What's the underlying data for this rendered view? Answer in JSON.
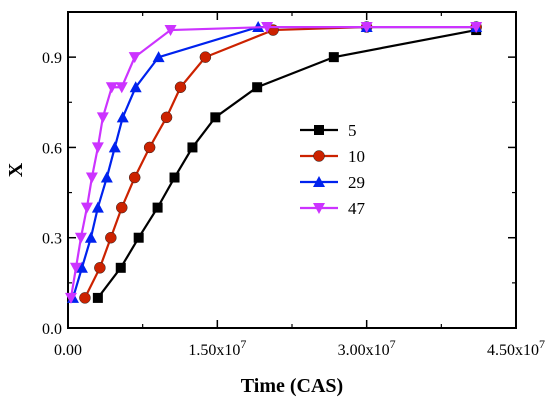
{
  "chart_data": {
    "type": "line",
    "title": "",
    "xlabel": "Time (CAS)",
    "ylabel": "X",
    "xlim": [
      0,
      45000000
    ],
    "ylim": [
      0,
      1.05
    ],
    "x_ticks": [
      {
        "value": 0,
        "label": "0.00"
      },
      {
        "value": 15000000,
        "label": "1.50x10^7"
      },
      {
        "value": 30000000,
        "label": "3.00x10^7"
      },
      {
        "value": 45000000,
        "label": "4.50x10^7"
      }
    ],
    "y_ticks": [
      {
        "value": 0.0,
        "label": "0.0"
      },
      {
        "value": 0.3,
        "label": "0.3"
      },
      {
        "value": 0.6,
        "label": "0.6"
      },
      {
        "value": 0.9,
        "label": "0.9"
      }
    ],
    "grid": false,
    "legend_position": "right-center",
    "series": [
      {
        "name": "5",
        "color": "#000000",
        "marker": "square",
        "x": [
          3000000,
          5300000,
          7100000,
          9000000,
          10700000,
          12500000,
          14800000,
          19000000,
          26700000,
          41000000
        ],
        "y": [
          0.1,
          0.2,
          0.3,
          0.4,
          0.5,
          0.6,
          0.7,
          0.8,
          0.9,
          0.99
        ]
      },
      {
        "name": "10",
        "color": "#cc2200",
        "marker": "circle",
        "x": [
          1700000,
          3200000,
          4300000,
          5400000,
          6700000,
          8200000,
          9900000,
          11300000,
          13800000,
          20600000,
          30000000,
          41000000
        ],
        "y": [
          0.1,
          0.2,
          0.3,
          0.4,
          0.5,
          0.6,
          0.7,
          0.8,
          0.9,
          0.99,
          1.0,
          1.0
        ]
      },
      {
        "name": "29",
        "color": "#0022ee",
        "marker": "triangle-up",
        "x": [
          500000,
          1400000,
          2300000,
          3000000,
          3900000,
          4700000,
          5500000,
          6800000,
          9100000,
          19100000,
          30000000,
          41000000
        ],
        "y": [
          0.1,
          0.2,
          0.3,
          0.4,
          0.5,
          0.6,
          0.7,
          0.8,
          0.9,
          1.0,
          1.0,
          1.0
        ]
      },
      {
        "name": "47",
        "color": "#cc33ff",
        "marker": "triangle-down",
        "x": [
          300000,
          800000,
          1300000,
          1900000,
          2400000,
          3000000,
          3500000,
          4400000,
          5400000,
          6700000,
          10300000,
          20000000,
          30000000,
          41000000
        ],
        "y": [
          0.1,
          0.2,
          0.3,
          0.4,
          0.5,
          0.6,
          0.7,
          0.8,
          0.8,
          0.9,
          0.99,
          1.0,
          1.0,
          1.0
        ]
      }
    ]
  }
}
